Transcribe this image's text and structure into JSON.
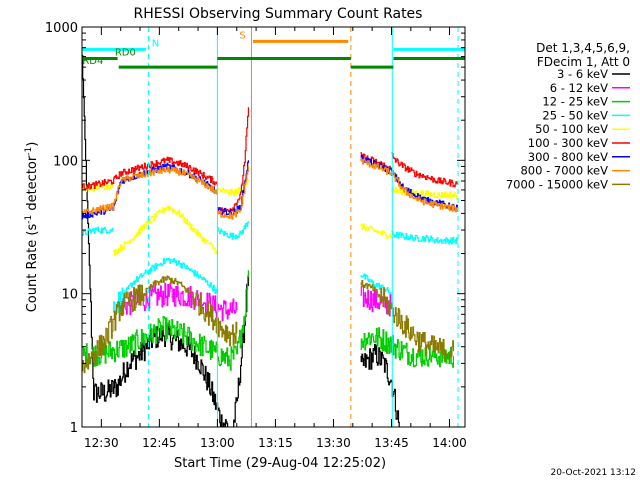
{
  "chart_data": {
    "type": "line",
    "title": "RHESSI Observing Summary Count Rates",
    "xlabel": "Start Time (29-Aug-04 12:25:02)",
    "ylabel_main": "Count Rate (s",
    "ylabel_sup1": "-1",
    "ylabel_mid": " detector",
    "ylabel_sup2": "-1",
    "ylabel_end": ")",
    "yscale": "log",
    "ylim": [
      1,
      1000
    ],
    "xlim_minutes": [
      0,
      99
    ],
    "x_ticks": [
      {
        "min": 5,
        "label": "12:30"
      },
      {
        "min": 20,
        "label": "12:45"
      },
      {
        "min": 35,
        "label": "13:00"
      },
      {
        "min": 50,
        "label": "13:15"
      },
      {
        "min": 65,
        "label": "13:30"
      },
      {
        "min": 80,
        "label": "13:45"
      },
      {
        "min": 95,
        "label": "14:00"
      }
    ],
    "y_ticks": [
      {
        "value": 1,
        "label": "1"
      },
      {
        "value": 10,
        "label": "10"
      },
      {
        "value": 100,
        "label": "100"
      },
      {
        "value": 1000,
        "label": "1000"
      }
    ],
    "legend": {
      "header1": "Det 1,3,4,5,6,9,",
      "header2": "FDecim 1, Att 0",
      "placement": "right"
    },
    "series": [
      {
        "name": "3 - 6 keV",
        "color": "#000000",
        "segments": [
          {
            "x": [
              0,
              3,
              6,
              9,
              12,
              15,
              18,
              21,
              24,
              27,
              30,
              33,
              36,
              38
            ],
            "y": [
              600,
              1.8,
              1.8,
              2.0,
              3.0,
              3.5,
              4.5,
              5.0,
              4.5,
              4.0,
              3.2,
              2.0,
              1.1,
              1
            ]
          },
          {
            "x": [
              39,
              40,
              41,
              42,
              43
            ],
            "y": [
              1,
              1.5,
              3,
              6,
              14
            ]
          },
          {
            "x": [
              72,
              74,
              76,
              78,
              80,
              81,
              82
            ],
            "y": [
              2.8,
              3.2,
              3.5,
              3.0,
              2.2,
              1.5,
              1
            ]
          }
        ]
      },
      {
        "name": "6 - 12 keV",
        "color": "#ff00ff",
        "segments": [
          {
            "x": [
              10,
              13,
              16,
              19,
              22,
              25,
              28,
              31,
              34,
              37,
              40
            ],
            "y": [
              8.0,
              8.5,
              9.0,
              9.5,
              9.8,
              9.8,
              9.5,
              9.0,
              8.0,
              7.5,
              7.5
            ]
          },
          {
            "x": [
              72,
              75,
              78,
              80
            ],
            "y": [
              9.5,
              9.0,
              8.5,
              8.2
            ]
          }
        ]
      },
      {
        "name": "12 - 25 keV",
        "color": "#00cc00",
        "segments": [
          {
            "x": [
              0,
              3,
              6,
              9,
              12,
              15,
              18,
              21,
              24,
              27,
              30,
              33,
              36,
              38,
              40,
              42,
              43
            ],
            "y": [
              3.5,
              3.5,
              3.6,
              3.8,
              4.0,
              4.5,
              5.0,
              5.5,
              5.2,
              4.8,
              4.2,
              3.8,
              3.4,
              3.2,
              3.5,
              7,
              15
            ]
          },
          {
            "x": [
              72,
              75,
              78,
              81,
              84,
              87,
              90,
              93,
              96
            ],
            "y": [
              4.5,
              4.8,
              4.5,
              4.0,
              3.6,
              3.4,
              3.5,
              3.4,
              3.4
            ]
          }
        ]
      },
      {
        "name": "25 - 50 keV",
        "color": "#00ffff",
        "segments": [
          {
            "x": [
              0,
              3,
              6,
              8
            ],
            "y": [
              28,
              30,
              30,
              30
            ]
          },
          {
            "x": [
              8,
              10,
              13,
              16,
              19,
              22,
              25,
              28,
              31,
              34,
              35
            ],
            "y": [
              8,
              9,
              12,
              14,
              16,
              18,
              17,
              15,
              13,
              11,
              10
            ]
          },
          {
            "x": [
              35,
              37,
              39,
              41,
              43
            ],
            "y": [
              30,
              28,
              27,
              28,
              35
            ]
          },
          {
            "x": [
              72,
              75,
              78,
              80
            ],
            "y": [
              14,
              12,
              11,
              10
            ]
          },
          {
            "x": [
              80,
              83,
              86,
              89,
              92,
              95,
              97
            ],
            "y": [
              28,
              27,
              26,
              26,
              25,
              25,
              25
            ]
          }
        ]
      },
      {
        "name": "50 - 100 keV",
        "color": "#ffff00",
        "segments": [
          {
            "x": [
              0,
              3,
              6,
              8
            ],
            "y": [
              60,
              62,
              64,
              65
            ]
          },
          {
            "x": [
              8,
              10,
              13,
              16,
              19,
              22,
              25,
              28,
              31,
              34,
              35
            ],
            "y": [
              20,
              22,
              26,
              32,
              38,
              45,
              40,
              32,
              26,
              22,
              20
            ]
          },
          {
            "x": [
              35,
              37,
              39,
              41,
              43
            ],
            "y": [
              60,
              58,
              57,
              60,
              70
            ]
          },
          {
            "x": [
              72,
              75,
              78,
              80
            ],
            "y": [
              32,
              30,
              28,
              27
            ]
          },
          {
            "x": [
              80,
              83,
              86,
              89,
              92,
              95,
              97
            ],
            "y": [
              60,
              58,
              57,
              56,
              55,
              55,
              54
            ]
          }
        ]
      },
      {
        "name": "100 - 300 keV",
        "color": "#ff0000",
        "segments": [
          {
            "x": [
              0,
              3,
              6,
              8,
              10,
              13,
              16,
              19,
              22,
              25,
              28,
              31,
              34,
              35
            ],
            "y": [
              63,
              65,
              68,
              70,
              80,
              85,
              90,
              95,
              100,
              95,
              88,
              78,
              70,
              65
            ]
          },
          {
            "x": [
              35,
              37,
              39,
              41,
              42,
              43
            ],
            "y": [
              42,
              42,
              44,
              55,
              100,
              250
            ]
          },
          {
            "x": [
              72,
              75,
              78,
              80
            ],
            "y": [
              108,
              100,
              92,
              85
            ]
          },
          {
            "x": [
              80,
              81,
              83,
              86,
              89,
              92,
              95,
              97
            ],
            "y": [
              110,
              100,
              90,
              80,
              75,
              70,
              68,
              66
            ]
          }
        ]
      },
      {
        "name": "300 - 800 keV",
        "color": "#0000ff",
        "segments": [
          {
            "x": [
              0,
              3,
              6,
              8,
              10,
              13,
              16,
              19,
              22,
              25,
              28,
              31,
              34,
              35
            ],
            "y": [
              38,
              40,
              42,
              43,
              70,
              75,
              80,
              85,
              90,
              85,
              78,
              70,
              60,
              55
            ]
          },
          {
            "x": [
              35,
              37,
              39,
              41,
              43
            ],
            "y": [
              42,
              41,
              40,
              45,
              100
            ]
          },
          {
            "x": [
              72,
              75,
              78,
              80,
              83,
              86,
              89,
              92,
              95,
              97
            ],
            "y": [
              105,
              95,
              88,
              82,
              62,
              55,
              50,
              48,
              45,
              44
            ]
          }
        ]
      },
      {
        "name": "800 - 7000 keV",
        "color": "#ff8800",
        "segments": [
          {
            "x": [
              0,
              3,
              6,
              8,
              10,
              13,
              16,
              19,
              22,
              25,
              28,
              31,
              34,
              35
            ],
            "y": [
              40,
              42,
              44,
              45,
              70,
              75,
              78,
              82,
              85,
              82,
              76,
              68,
              60,
              55
            ]
          },
          {
            "x": [
              35,
              37,
              39,
              41,
              43
            ],
            "y": [
              40,
              39,
              38,
              42,
              90
            ]
          },
          {
            "x": [
              72,
              75,
              78,
              80,
              83,
              86,
              89,
              92,
              95,
              97
            ],
            "y": [
              100,
              92,
              85,
              80,
              60,
              52,
              48,
              46,
              44,
              43
            ]
          }
        ]
      },
      {
        "name": "7000 - 15000 keV",
        "color": "#8b7a00",
        "segments": [
          {
            "x": [
              0,
              3,
              6,
              8,
              10,
              13,
              16,
              19,
              22,
              25,
              28,
              31,
              34,
              36,
              38,
              40
            ],
            "y": [
              2.8,
              3.5,
              4.5,
              6,
              8,
              9,
              10,
              12,
              13,
              12,
              10,
              8,
              6.5,
              5.5,
              5,
              5
            ]
          },
          {
            "x": [
              72,
              75,
              78,
              81,
              84,
              87,
              90,
              93,
              96
            ],
            "y": [
              12,
              11,
              9,
              7,
              5.5,
              4.5,
              4,
              3.8,
              3.7
            ]
          }
        ]
      }
    ],
    "vertical_markers": [
      {
        "min": 17.2,
        "color": "#00ffff",
        "style": "dashed"
      },
      {
        "min": 97.2,
        "color": "#00ffff",
        "style": "dashed"
      },
      {
        "min": 43.8,
        "color": "#ff8800",
        "style": "solid"
      },
      {
        "min": 69.5,
        "color": "#ff8800",
        "style": "dashed"
      },
      {
        "min": 35.0,
        "color": "#00ffff",
        "style": "solid"
      },
      {
        "min": 80.2,
        "color": "#00ffff",
        "style": "solid"
      }
    ],
    "status_bars": [
      {
        "label": "N",
        "color": "#00ffff",
        "y": 680,
        "x0": 0,
        "x1": 16.5,
        "label_min": 19.0
      },
      {
        "label": "S",
        "color": "#ff8800",
        "y": 780,
        "x0": 44.2,
        "x1": 68.8,
        "label_min": 41.5
      },
      {
        "label": "",
        "color": "#00ffff",
        "y": 680,
        "x0": 80.5,
        "x1": 99.0,
        "label_min": null
      },
      {
        "label": "RD0",
        "color": "#008800",
        "y": 580,
        "x0": 0,
        "x1": 9.2,
        "label_min": 11.2
      },
      {
        "label": "RD4",
        "color": "#008800",
        "y": 500,
        "x0": 9.5,
        "x1": 35.0,
        "label_min": 2.8
      },
      {
        "label": "",
        "color": "#008800",
        "y": 580,
        "x0": 35.0,
        "x1": 69.5,
        "label_min": null
      },
      {
        "label": "",
        "color": "#008800",
        "y": 500,
        "x0": 69.5,
        "x1": 80.5,
        "label_min": null
      },
      {
        "label": "",
        "color": "#008800",
        "y": 580,
        "x0": 80.5,
        "x1": 99.0,
        "label_min": null
      }
    ],
    "footer_timestamp": "20-Oct-2021 13:12"
  }
}
